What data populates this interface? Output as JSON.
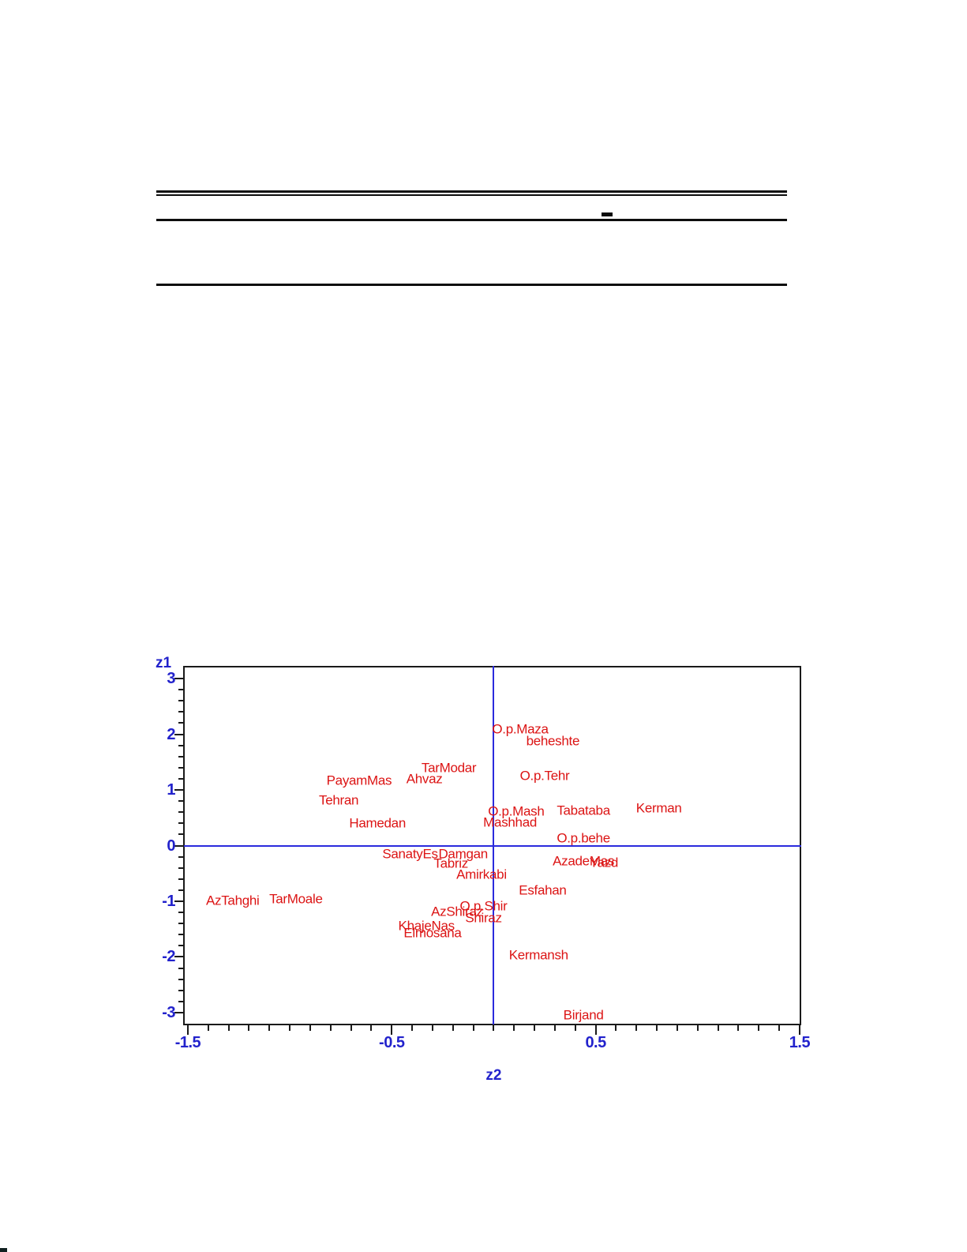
{
  "page": {
    "background": "#ffffff"
  },
  "chart_data": {
    "type": "scatter",
    "title": "",
    "xlabel": "z2",
    "ylabel": "z1",
    "xlim": [
      -1.523,
      1.508
    ],
    "ylim": [
      -3.227,
      3.227
    ],
    "x_major_ticks": [
      -1.5,
      -0.5,
      0.5,
      1.5
    ],
    "x_minor_step": 0.1,
    "y_major_ticks": [
      3,
      2,
      1,
      0,
      -1,
      -2,
      -3
    ],
    "y_minor_step": 0.2,
    "grid": false,
    "legend": false,
    "reference_lines": {
      "vertical_at_x": 0,
      "horizontal_at_y": 0
    },
    "colors": {
      "axis_text": "#2222cc",
      "point_labels": "#dc1414",
      "reference_line": "#2b2bdd",
      "frame": "#1a1a1a"
    },
    "points": [
      {
        "label": "O.p.Maza",
        "x": 0.13,
        "y": 2.09
      },
      {
        "label": "beheshte",
        "x": 0.29,
        "y": 1.88
      },
      {
        "label": "TarModar",
        "x": -0.22,
        "y": 1.4
      },
      {
        "label": "Ahvaz",
        "x": -0.34,
        "y": 1.2
      },
      {
        "label": "PayamMas",
        "x": -0.66,
        "y": 1.17
      },
      {
        "label": "O.p.Tehr",
        "x": 0.25,
        "y": 1.26
      },
      {
        "label": "Tehran",
        "x": -0.76,
        "y": 0.82
      },
      {
        "label": "O.p.Mash",
        "x": 0.11,
        "y": 0.62
      },
      {
        "label": "Mashhad",
        "x": 0.08,
        "y": 0.42
      },
      {
        "label": "Hamedan",
        "x": -0.57,
        "y": 0.4
      },
      {
        "label": "Tabataba",
        "x": 0.44,
        "y": 0.63
      },
      {
        "label": "Kerman",
        "x": 0.81,
        "y": 0.67
      },
      {
        "label": "O.p.behe",
        "x": 0.44,
        "y": 0.13
      },
      {
        "label": "SanatyEs",
        "x": -0.41,
        "y": -0.15
      },
      {
        "label": "Damgan",
        "x": -0.15,
        "y": -0.15
      },
      {
        "label": "Tabriz",
        "x": -0.21,
        "y": -0.32
      },
      {
        "label": "Amirkabi",
        "x": -0.06,
        "y": -0.52
      },
      {
        "label": "AzadeMas",
        "x": 0.44,
        "y": -0.28
      },
      {
        "label": "Yazd",
        "x": 0.54,
        "y": -0.3
      },
      {
        "label": "Esfahan",
        "x": 0.24,
        "y": -0.8
      },
      {
        "label": "AzTahghi",
        "x": -1.28,
        "y": -0.99
      },
      {
        "label": "TarMoale",
        "x": -0.97,
        "y": -0.96
      },
      {
        "label": "O.p.Shir",
        "x": -0.05,
        "y": -1.09
      },
      {
        "label": "AzShiraz",
        "x": -0.18,
        "y": -1.18
      },
      {
        "label": "Shiraz",
        "x": -0.05,
        "y": -1.3
      },
      {
        "label": "KhajeNas",
        "x": -0.33,
        "y": -1.44
      },
      {
        "label": "Elmosana",
        "x": -0.3,
        "y": -1.57
      },
      {
        "label": "Kermansh",
        "x": 0.22,
        "y": -1.96
      },
      {
        "label": "Birjand",
        "x": 0.44,
        "y": -3.04
      }
    ]
  }
}
